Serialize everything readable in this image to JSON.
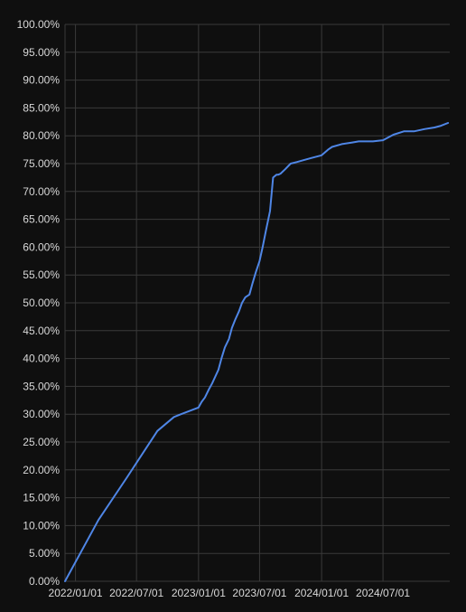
{
  "chart_data": {
    "type": "line",
    "title": "",
    "xlabel": "",
    "ylabel": "",
    "grid": true,
    "legend": "none",
    "colors": {
      "background": "#0f0f0f",
      "grid": "#3a3a3a",
      "line": "#4f86e6",
      "text": "#d8d8d8"
    },
    "xlim": [
      "2021-12-01",
      "2025-01-15"
    ],
    "ylim": [
      0,
      100
    ],
    "x_ticks": [
      "2022/01/01",
      "2022/07/01",
      "2023/01/01",
      "2023/07/01",
      "2024/01/01",
      "2024/07/01"
    ],
    "y_ticks": [
      "0.00%",
      "5.00%",
      "10.00%",
      "15.00%",
      "20.00%",
      "25.00%",
      "30.00%",
      "35.00%",
      "40.00%",
      "45.00%",
      "50.00%",
      "55.00%",
      "60.00%",
      "65.00%",
      "70.00%",
      "75.00%",
      "80.00%",
      "85.00%",
      "90.00%",
      "95.00%",
      "100.00%"
    ],
    "series": [
      {
        "x": [
          "2021-12-01",
          "2022-03-10",
          "2022-06-01",
          "2022-09-01",
          "2022-10-20",
          "2022-11-10",
          "2023-01-01",
          "2023-01-10",
          "2023-01-20",
          "2023-02-01",
          "2023-02-10",
          "2023-02-20",
          "2023-03-01",
          "2023-03-10",
          "2023-03-20",
          "2023-04-01",
          "2023-04-10",
          "2023-04-20",
          "2023-05-01",
          "2023-05-10",
          "2023-05-20",
          "2023-06-01",
          "2023-06-10",
          "2023-06-20",
          "2023-07-01",
          "2023-07-10",
          "2023-07-20",
          "2023-08-01",
          "2023-08-10",
          "2023-08-20",
          "2023-08-25",
          "2023-09-01",
          "2023-09-15",
          "2023-10-01",
          "2023-10-20",
          "2023-11-01",
          "2023-12-01",
          "2024-01-01",
          "2024-01-20",
          "2024-02-01",
          "2024-03-01",
          "2024-04-01",
          "2024-04-20",
          "2024-05-01",
          "2024-06-01",
          "2024-07-01",
          "2024-08-01",
          "2024-09-01",
          "2024-10-01",
          "2024-11-01",
          "2024-12-01",
          "2024-12-20",
          "2025-01-10"
        ],
        "y": [
          0.0,
          11.0,
          18.5,
          27.0,
          29.5,
          30.0,
          31.2,
          32.2,
          33.0,
          34.5,
          35.5,
          36.8,
          38.0,
          40.0,
          42.0,
          43.5,
          45.5,
          47.0,
          48.5,
          50.0,
          51.0,
          51.5,
          53.5,
          55.5,
          57.5,
          60.0,
          63.0,
          66.5,
          72.5,
          73.0,
          73.0,
          73.2,
          74.0,
          75.0,
          75.3,
          75.5,
          76.0,
          76.5,
          77.5,
          78.0,
          78.5,
          78.8,
          79.0,
          79.0,
          79.0,
          79.2,
          80.2,
          80.8,
          80.8,
          81.2,
          81.5,
          81.8,
          82.3
        ]
      }
    ]
  }
}
